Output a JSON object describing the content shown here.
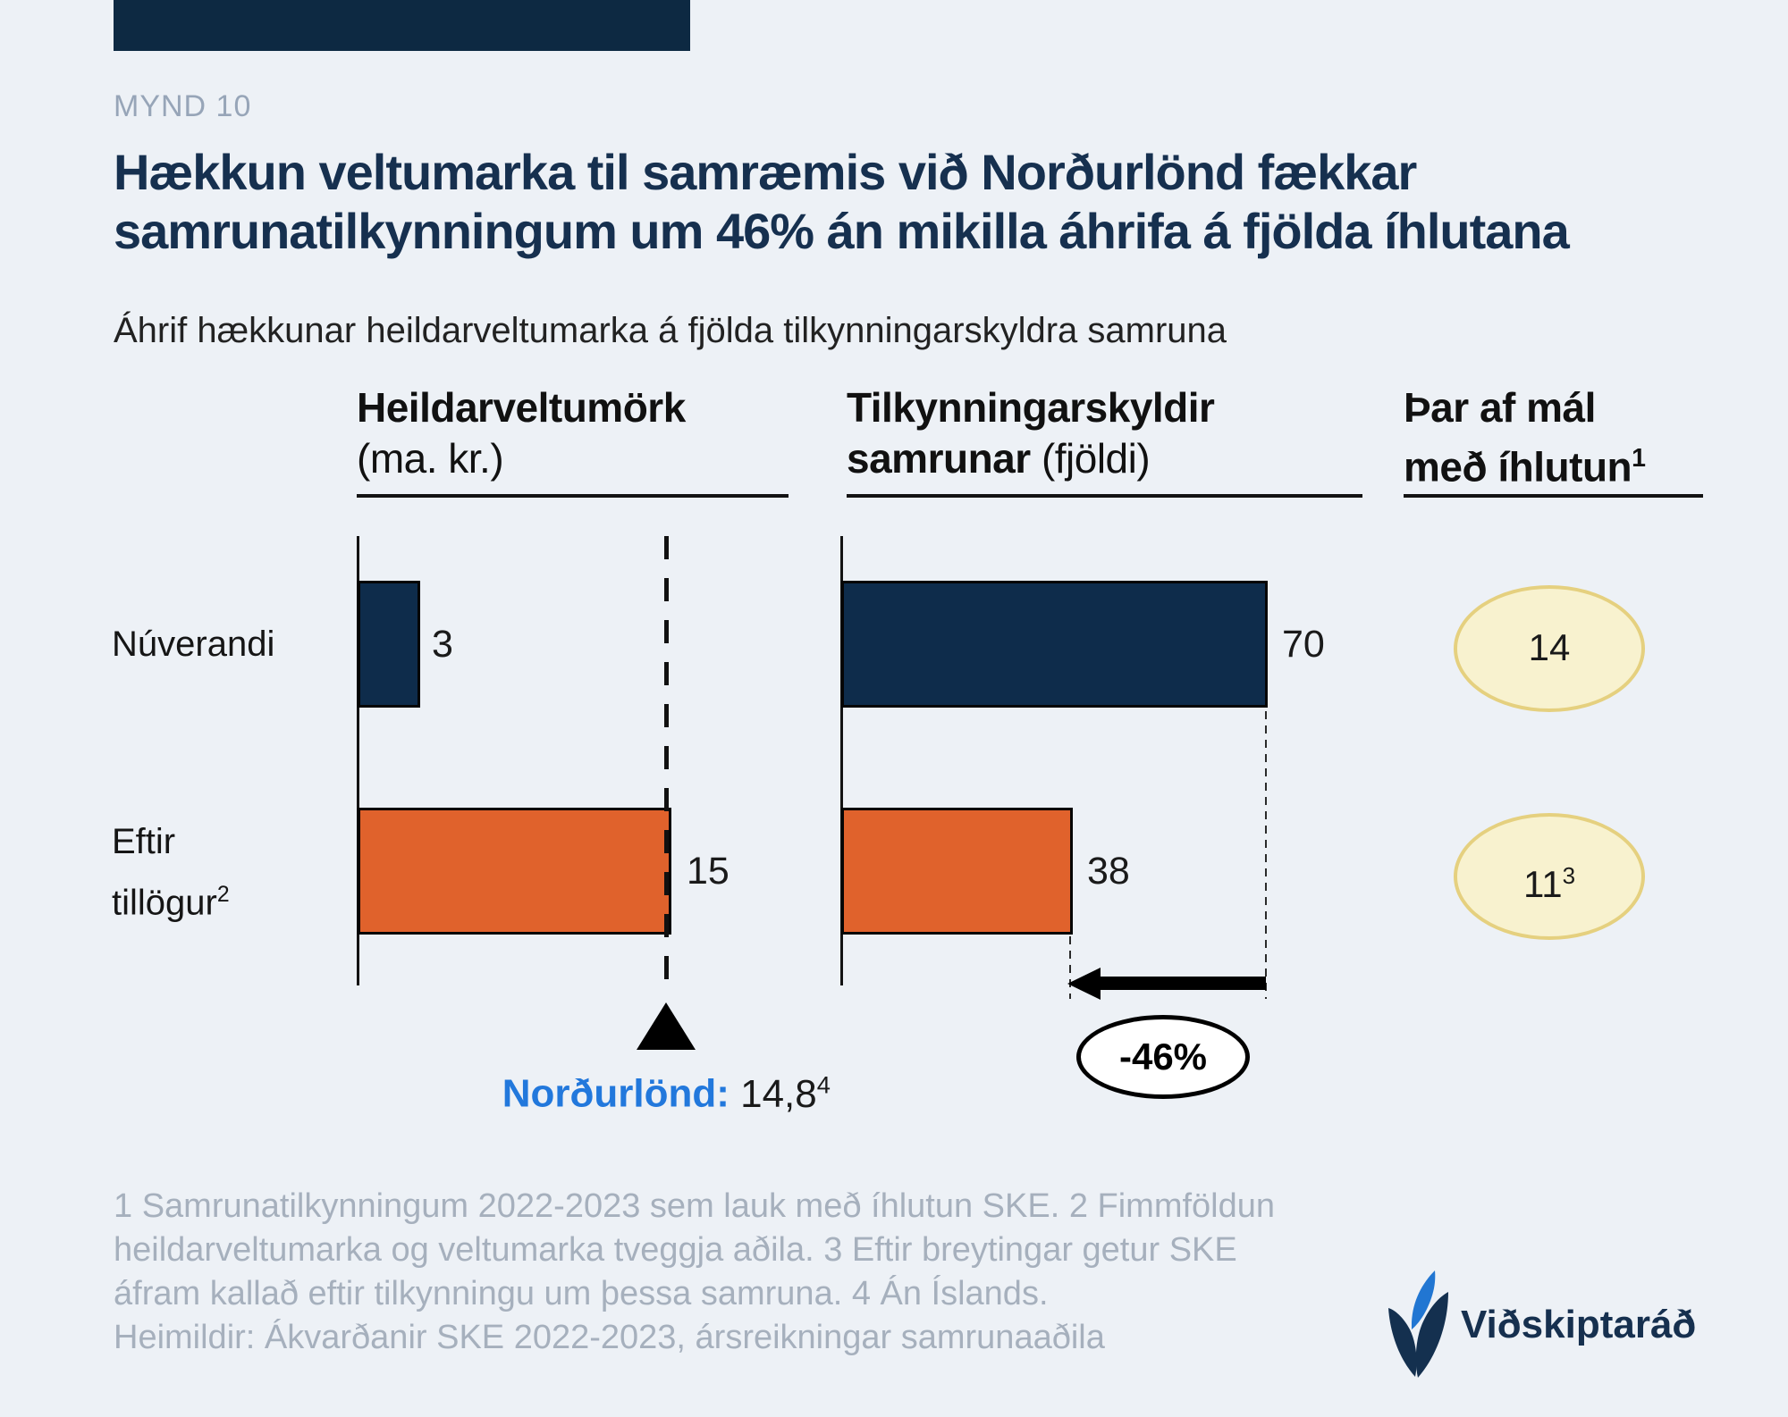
{
  "page": {
    "figure_label": "MYND 10",
    "title_line1": "Hækkun veltumarka til samræmis við Norðurlönd fækkar",
    "title_line2": "samrunatilkynningum um 46% án mikilla áhrifa á fjölda íhlutana",
    "subtitle": "Áhrif hækkunar heildarveltumarka á fjölda tilkynningarskyldra samruna"
  },
  "columns": [
    {
      "bold": "Heildarveltumörk",
      "regular": "(ma. kr.)"
    },
    {
      "bold_line1": "Tilkynningarskyldir",
      "bold_line2": "samrunar",
      "regular": "(fjöldi)"
    },
    {
      "line1": "Þar af mál",
      "line2": "með íhlutun",
      "sup": "1"
    }
  ],
  "rows": [
    {
      "label": "Núverandi"
    },
    {
      "line1": "Eftir",
      "line2": "tillögur",
      "sup": "2"
    }
  ],
  "chart_data": [
    {
      "type": "bar",
      "orientation": "horizontal",
      "title": "Heildarveltumörk (ma. kr.)",
      "categories": [
        "Núverandi",
        "Eftir tillögur"
      ],
      "values": [
        3,
        15
      ],
      "xlim": [
        0,
        15.5
      ],
      "reference_line": {
        "label": "Norðurlönd",
        "label_display": "Norðurlönd:",
        "value": 14.8,
        "value_display": "14,8",
        "footnote_mark": "4"
      }
    },
    {
      "type": "bar",
      "orientation": "horizontal",
      "title": "Tilkynningarskyldir samrunar (fjöldi)",
      "categories": [
        "Núverandi",
        "Eftir tillögur"
      ],
      "values": [
        70,
        38
      ],
      "xlim": [
        0,
        70
      ],
      "change_annotation": "-46%"
    },
    {
      "type": "table",
      "title": "Þar af mál með íhlutun",
      "categories": [
        "Núverandi",
        "Eftir tillögur"
      ],
      "values": [
        14,
        11
      ],
      "footnote_marks": [
        "",
        "3"
      ]
    }
  ],
  "footnotes": [
    "1 Samrunatilkynningum 2022-2023 sem lauk með íhlutun SKE. 2 Fimmföldun",
    "heildarveltumarka og veltumarka tveggja aðila. 3 Eftir breytingar getur SKE",
    "áfram kallað eftir tilkynningu um þessa samruna. 4 Án Íslands.",
    "Heimildir: Ákvarðanir SKE 2022-2023, ársreikningar samrunaaðila"
  ],
  "logo": {
    "text": "Viðskiptaráð"
  },
  "colors": {
    "background": "#edf1f6",
    "navy_bar": "#0e2c4b",
    "orange_bar": "#e0622c",
    "top_strip": "#0d2942",
    "title_navy": "#16304f",
    "figure_label_gray": "#97a5b8",
    "footnote_gray": "#a6b0bd",
    "nordic_blue": "#2278dc",
    "bubble_fill": "#f8f2cf",
    "bubble_border": "#e5d07f",
    "logo_blue": "#2176d2"
  }
}
